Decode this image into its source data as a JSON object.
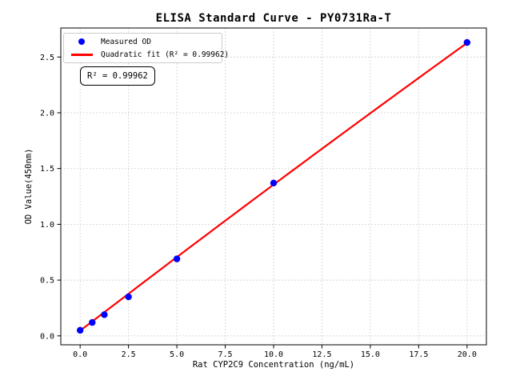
{
  "chart_data": {
    "type": "scatter",
    "title": "ELISA Standard Curve - PY0731Ra-T",
    "xlabel": "Rat CYP2C9 Concentration (ng/mL)",
    "ylabel": "OD Value(450nm)",
    "xlim": [
      -1,
      21
    ],
    "ylim": [
      -0.08,
      2.76
    ],
    "x_ticks": [
      0,
      2.5,
      5,
      7.5,
      10,
      12.5,
      15,
      17.5,
      20
    ],
    "x_tick_labels": [
      "0.0",
      "2.5",
      "5.0",
      "7.5",
      "10.0",
      "12.5",
      "15.0",
      "17.5",
      "20.0"
    ],
    "y_ticks": [
      0,
      0.5,
      1,
      1.5,
      2,
      2.5
    ],
    "y_tick_labels": [
      "0.0",
      "0.5",
      "1.0",
      "1.5",
      "2.0",
      "2.5"
    ],
    "grid": true,
    "legend_position": "upper left",
    "series": [
      {
        "name": "Measured OD",
        "type": "scatter",
        "color": "#0000ff",
        "x": [
          0,
          0.625,
          1.25,
          2.5,
          5,
          10,
          20
        ],
        "y": [
          0.05,
          0.12,
          0.19,
          0.35,
          0.69,
          1.37,
          2.63
        ]
      },
      {
        "name": "Quadratic fit (R² = 0.99962)",
        "type": "line",
        "color": "#ff0000",
        "fit_coefficients": [
          0.046,
          0.133,
          -0.0002
        ],
        "x_range": [
          0,
          20
        ]
      }
    ],
    "annotation": "R² = 0.99962",
    "r_squared": 0.99962,
    "axis_color": "#000000",
    "grid_color": "#c8c8c8",
    "tick_label_color": "#000000"
  }
}
